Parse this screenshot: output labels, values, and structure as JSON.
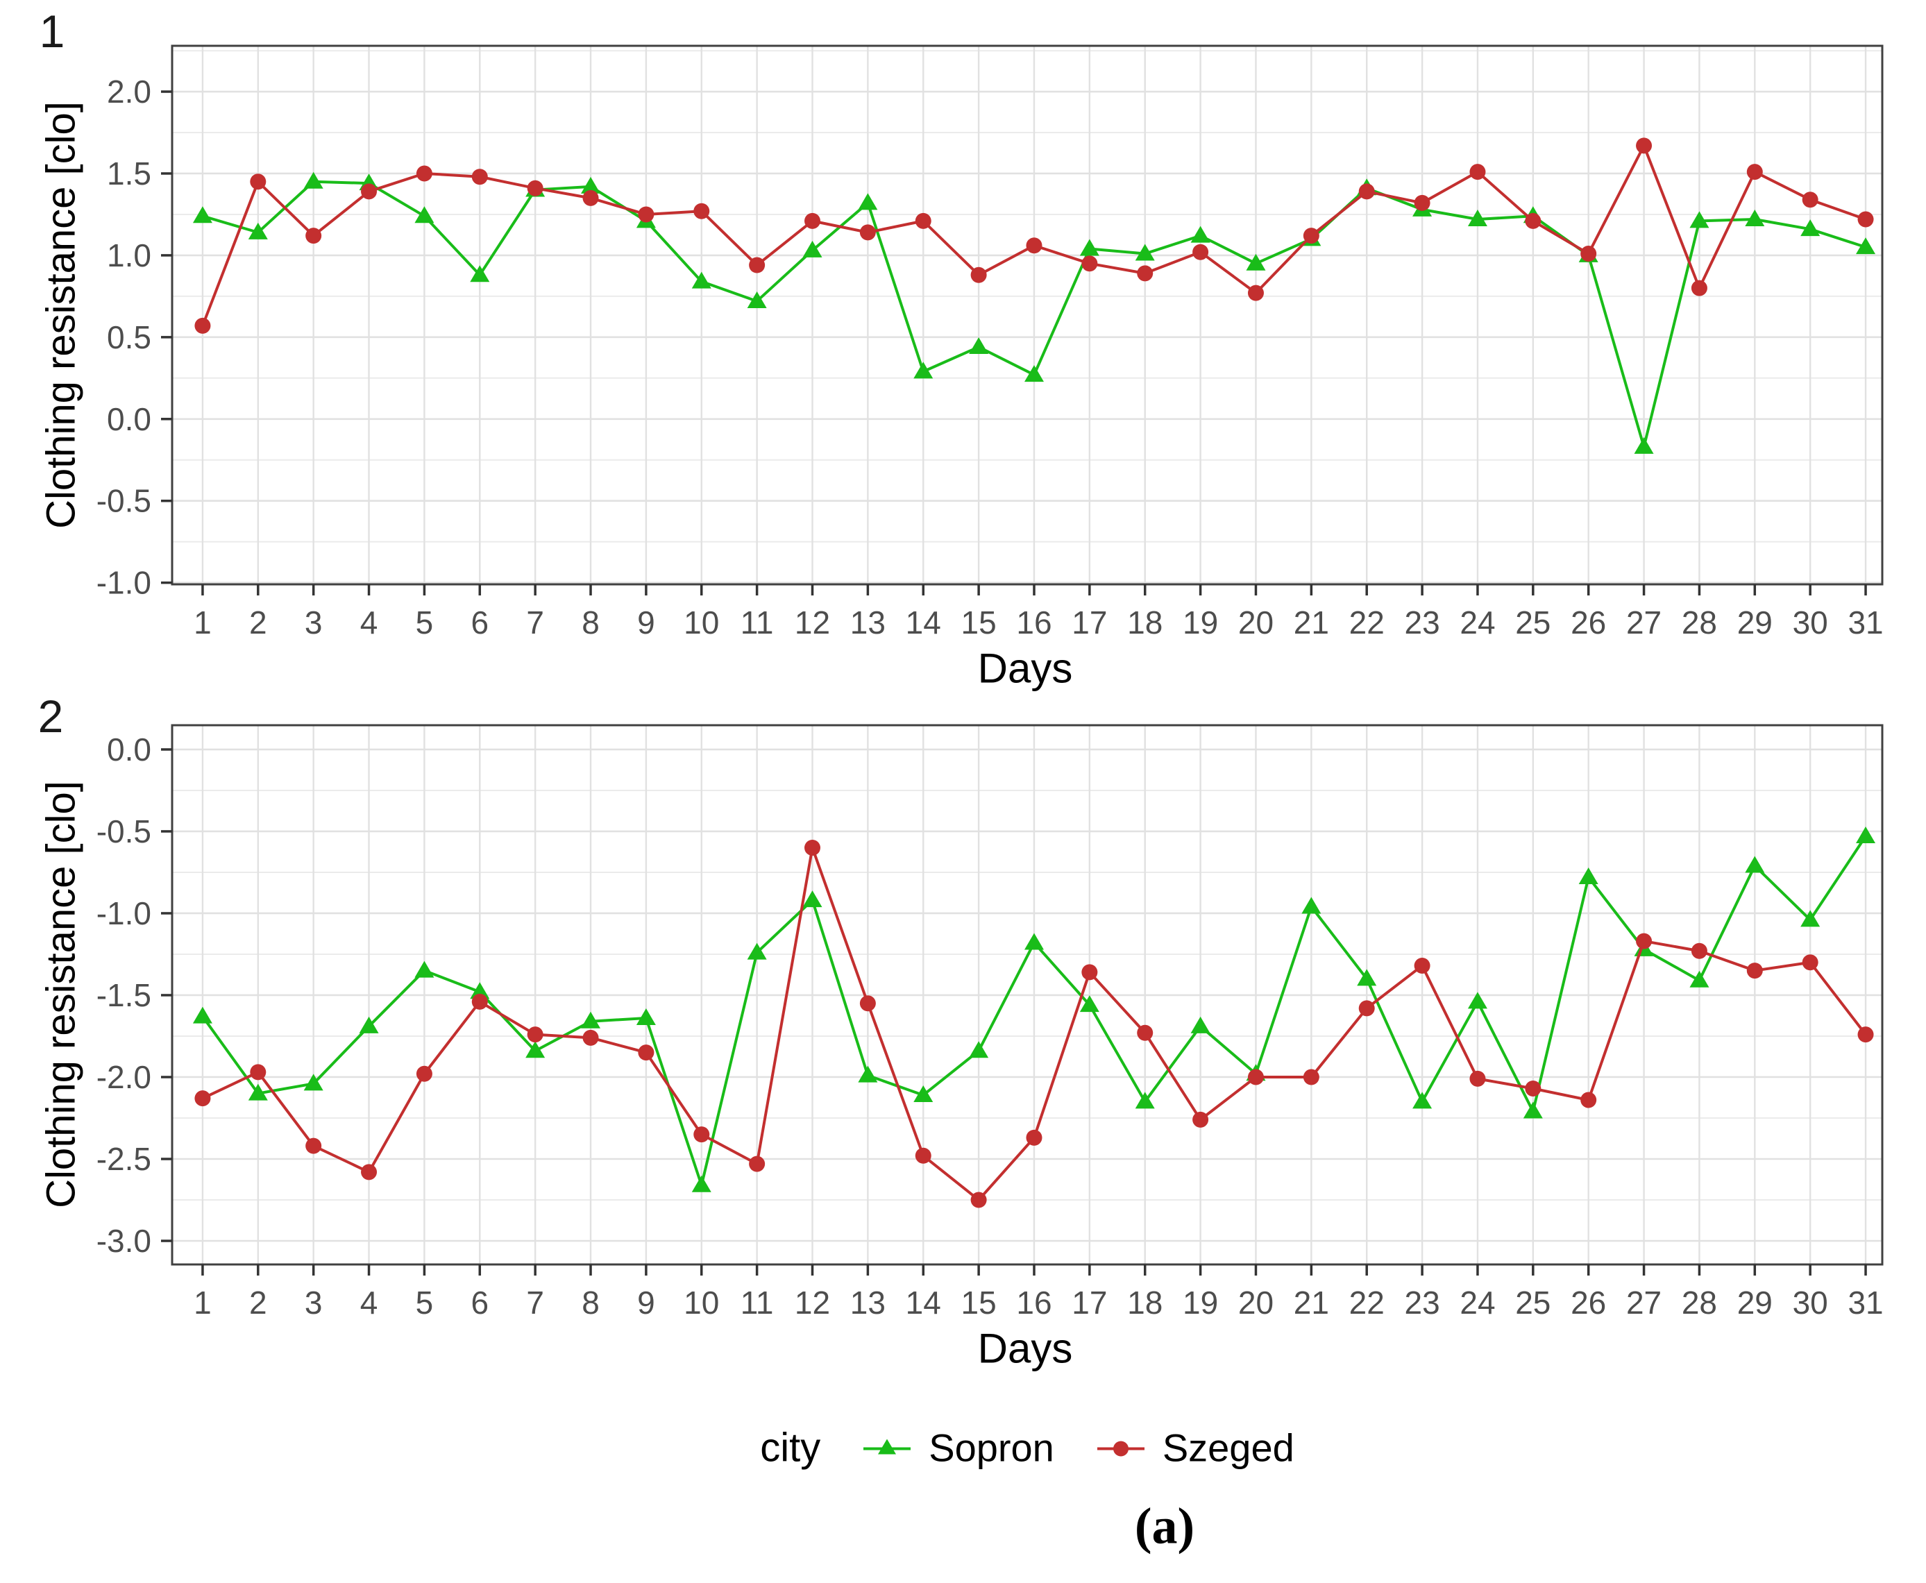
{
  "page": {
    "background": "#ffffff"
  },
  "caption": "(a)",
  "legend": {
    "title": "city",
    "position": "bottom-center",
    "entries": [
      {
        "label": "Sopron",
        "color": "#19bc19",
        "marker": "triangle"
      },
      {
        "label": "Szeged",
        "color": "#c32f2f",
        "marker": "circle"
      }
    ]
  },
  "chart_data": [
    {
      "type": "line",
      "panel_label": "1",
      "title": "",
      "xlabel": "Days",
      "ylabel": "Clothing resistance [clo]",
      "grid": true,
      "x": [
        1,
        2,
        3,
        4,
        5,
        6,
        7,
        8,
        9,
        10,
        11,
        12,
        13,
        14,
        15,
        16,
        17,
        18,
        19,
        20,
        21,
        22,
        23,
        24,
        25,
        26,
        27,
        28,
        29,
        30,
        31
      ],
      "xlim": [
        0.45,
        31.3
      ],
      "ylim": [
        -1.01,
        2.28
      ],
      "yticks": [
        2.0,
        1.5,
        1.0,
        0.5,
        0.0,
        -0.5,
        -1.0
      ],
      "ytick_labels": [
        "2.0",
        "1.5",
        "1.0",
        "0.5",
        "0.0",
        "-0.5",
        "-1.0"
      ],
      "series": [
        {
          "name": "Sopron",
          "marker": "triangle",
          "color": "#19bc19",
          "values": [
            1.24,
            1.14,
            1.45,
            1.44,
            1.24,
            0.88,
            1.4,
            1.42,
            1.21,
            0.84,
            0.72,
            1.03,
            1.32,
            0.29,
            0.44,
            0.27,
            1.04,
            1.01,
            1.12,
            0.95,
            1.1,
            1.41,
            1.28,
            1.22,
            1.24,
            1.0,
            -0.17,
            1.21,
            1.22,
            1.16,
            1.05
          ]
        },
        {
          "name": "Szeged",
          "marker": "circle",
          "color": "#c32f2f",
          "values": [
            0.57,
            1.45,
            1.12,
            1.39,
            1.5,
            1.48,
            1.41,
            1.35,
            1.25,
            1.27,
            0.94,
            1.21,
            1.14,
            1.21,
            0.88,
            1.06,
            0.95,
            0.89,
            1.02,
            0.77,
            1.12,
            1.39,
            1.32,
            1.51,
            1.21,
            1.01,
            1.67,
            0.8,
            1.51,
            1.34,
            1.22
          ]
        }
      ]
    },
    {
      "type": "line",
      "panel_label": "2",
      "title": "",
      "xlabel": "Days",
      "ylabel": "Clothing resistance [clo]",
      "grid": true,
      "x": [
        1,
        2,
        3,
        4,
        5,
        6,
        7,
        8,
        9,
        10,
        11,
        12,
        13,
        14,
        15,
        16,
        17,
        18,
        19,
        20,
        21,
        22,
        23,
        24,
        25,
        26,
        27,
        28,
        29,
        30,
        31
      ],
      "xlim": [
        0.45,
        31.3
      ],
      "ylim": [
        -3.144,
        0.148
      ],
      "yticks": [
        0.0,
        -0.5,
        -1.0,
        -1.5,
        -2.0,
        -2.5,
        -3.0
      ],
      "ytick_labels": [
        "0.0",
        "-0.5",
        "-1.0",
        "-1.5",
        "-2.0",
        "-2.5",
        "-3.0"
      ],
      "series": [
        {
          "name": "Sopron",
          "marker": "triangle",
          "color": "#19bc19",
          "values": [
            -1.63,
            -2.1,
            -2.04,
            -1.69,
            -1.35,
            -1.48,
            -1.84,
            -1.66,
            -1.64,
            -2.66,
            -1.24,
            -0.92,
            -1.99,
            -2.11,
            -1.84,
            -1.18,
            -1.56,
            -2.15,
            -1.69,
            -1.98,
            -0.96,
            -1.4,
            -2.15,
            -1.54,
            -2.21,
            -0.78,
            -1.22,
            -1.41,
            -0.71,
            -1.04,
            -0.53
          ]
        },
        {
          "name": "Szeged",
          "marker": "circle",
          "color": "#c32f2f",
          "values": [
            -2.13,
            -1.97,
            -2.42,
            -2.58,
            -1.98,
            -1.54,
            -1.74,
            -1.76,
            -1.85,
            -2.35,
            -2.53,
            -0.6,
            -1.55,
            -2.48,
            -2.75,
            -2.37,
            -1.36,
            -1.73,
            -2.26,
            -2.0,
            -2.0,
            -1.58,
            -1.32,
            -2.01,
            -2.07,
            -2.14,
            -1.17,
            -1.23,
            -1.35,
            -1.3,
            -1.74
          ]
        }
      ]
    }
  ],
  "style": {
    "grid_major_color": "#e1e1e1",
    "grid_minor_color": "#ebebeb",
    "panel_border_color": "#404040",
    "tick_color": "#333333",
    "tick_label_color": "#4d4d4d",
    "panel_bg": "#ffffff"
  }
}
